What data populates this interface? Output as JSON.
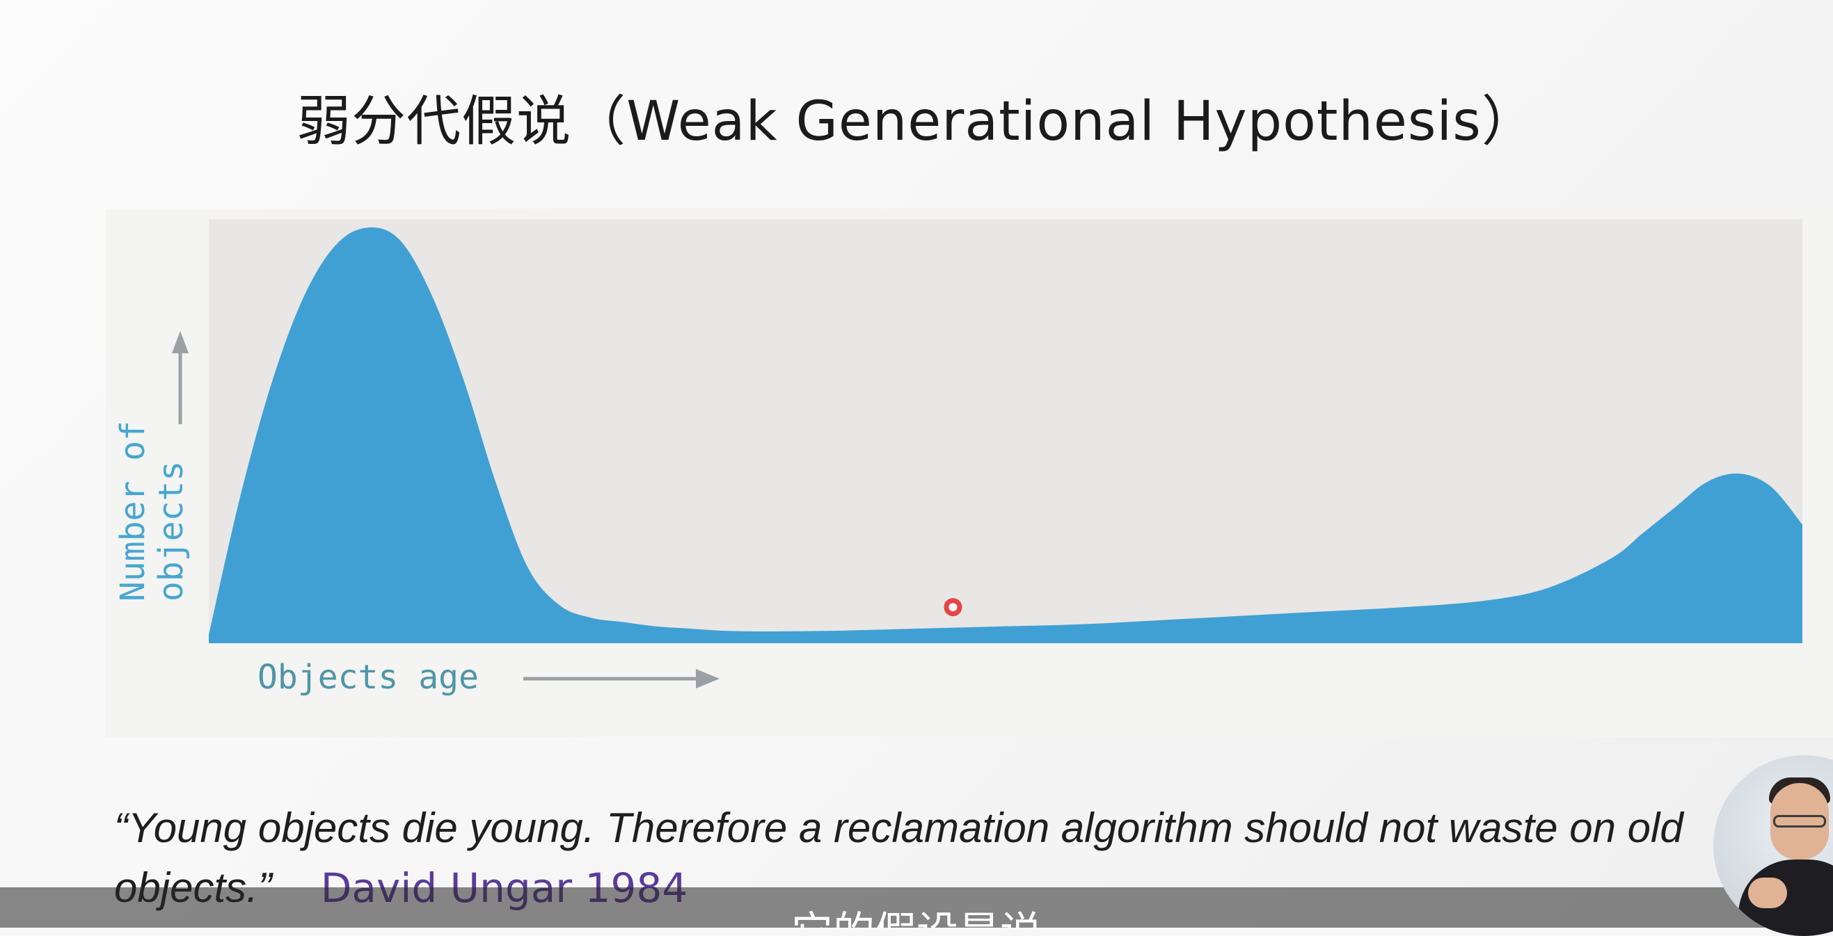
{
  "slide": {
    "title": "弱分代假说（Weak Generational Hypothesis）"
  },
  "chart_data": {
    "type": "area",
    "title": "",
    "xlabel": "Objects age",
    "ylabel": "Number of objects",
    "xlim": [
      0,
      1
    ],
    "ylim": [
      0,
      1
    ],
    "x": [
      0,
      0.02,
      0.04,
      0.06,
      0.08,
      0.1,
      0.12,
      0.14,
      0.16,
      0.18,
      0.2,
      0.22,
      0.24,
      0.26,
      0.28,
      0.3,
      0.32,
      0.34,
      0.36,
      0.4,
      0.45,
      0.5,
      0.55,
      0.6,
      0.65,
      0.7,
      0.75,
      0.8,
      0.84,
      0.88,
      0.9,
      0.92,
      0.94,
      0.96,
      0.98,
      1.0
    ],
    "series": [
      {
        "values": [
          0.02,
          0.35,
          0.62,
          0.82,
          0.94,
          0.98,
          0.95,
          0.82,
          0.62,
          0.38,
          0.18,
          0.09,
          0.06,
          0.05,
          0.04,
          0.035,
          0.03,
          0.028,
          0.028,
          0.03,
          0.035,
          0.04,
          0.045,
          0.055,
          0.065,
          0.075,
          0.085,
          0.1,
          0.13,
          0.2,
          0.26,
          0.32,
          0.38,
          0.4,
          0.37,
          0.28
        ]
      }
    ],
    "grid": false,
    "legend": "none",
    "colors": {
      "area": "#41a0d3",
      "plot_bg": "#e8e7e5",
      "axis_label": "#47a6d0",
      "axis_label_x": "#4f95a8",
      "arrow": "#9aa0a3"
    }
  },
  "pointer": {
    "icon": "laser-pointer-icon",
    "color": "#e8262a",
    "x_value": 0.467,
    "y_value": 0.085
  },
  "quote": {
    "text": "“Young objects die young. Therefore a reclamation algorithm should not waste on old objects.”",
    "author": "David Ungar 1984"
  },
  "subtitle": {
    "text": "它的假设是说"
  },
  "presenter": {
    "icon": "presenter-avatar-icon"
  }
}
